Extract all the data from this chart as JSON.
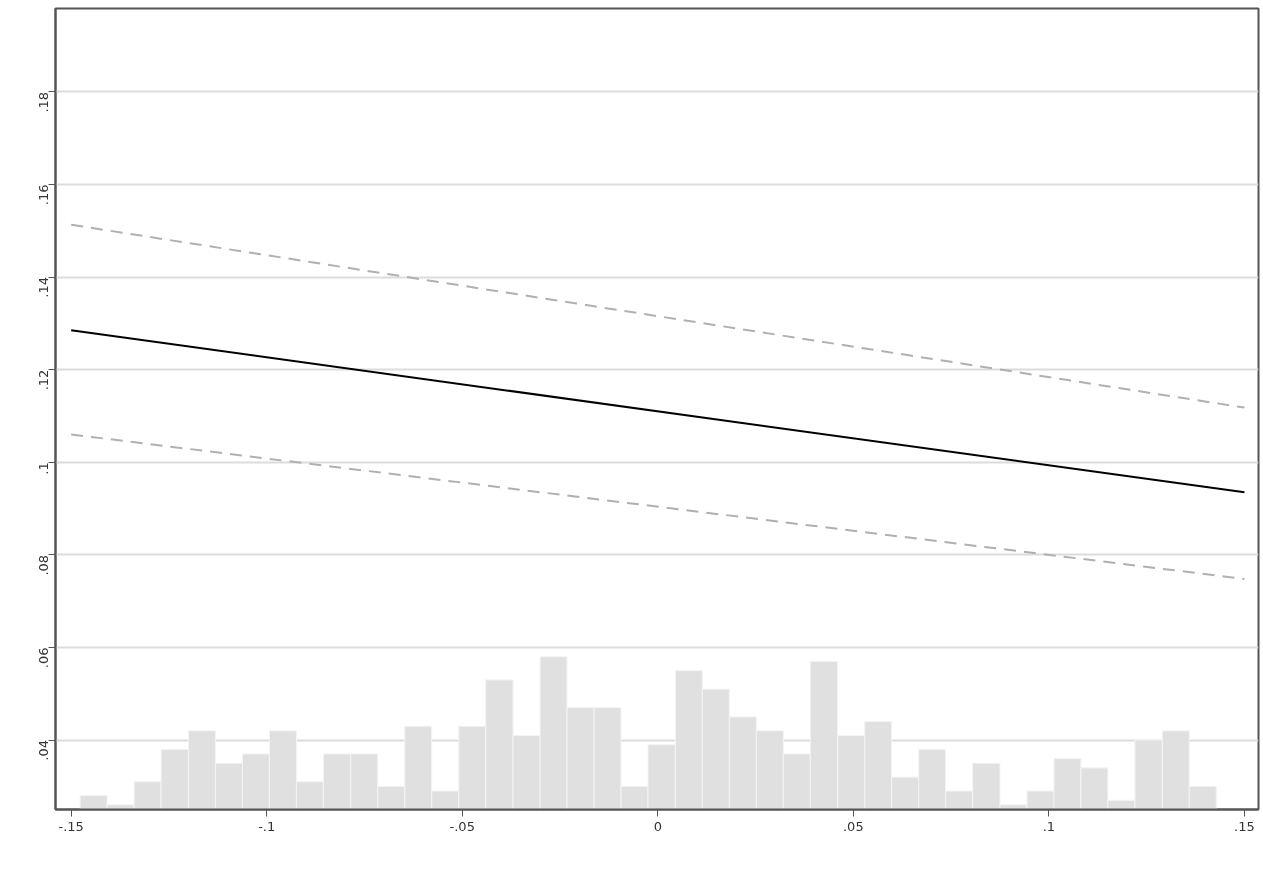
{
  "chart_data": {
    "type": "line",
    "xlim": [
      -0.154,
      0.1536
    ],
    "ylim": [
      0.025,
      0.198
    ],
    "xticks": [
      {
        "value": -0.15,
        "label": "-.15"
      },
      {
        "value": -0.1,
        "label": "-.1"
      },
      {
        "value": -0.05,
        "label": "-.05"
      },
      0,
      {
        "value": 0.05,
        "label": ".05"
      },
      {
        "value": 0.1,
        "label": ".1"
      },
      {
        "value": 0.15,
        "label": ".15"
      }
    ],
    "yticks": [
      {
        "value": 0.04,
        "label": ".04"
      },
      {
        "value": 0.06,
        "label": ".06"
      },
      {
        "value": 0.08,
        "label": ".08"
      },
      {
        "value": 0.1,
        "label": ".1"
      },
      {
        "value": 0.12,
        "label": ".12"
      },
      {
        "value": 0.14,
        "label": ".14"
      },
      {
        "value": 0.16,
        "label": ".16"
      },
      {
        "value": 0.18,
        "label": ".18"
      }
    ],
    "grid": "y",
    "x": [
      -0.15,
      0.15
    ],
    "series": [
      {
        "type": "histogram",
        "color": "#e0e0e0",
        "bins": [
          -0.1477,
          -0.1408,
          -0.1339,
          -0.127,
          -0.12,
          -0.1131,
          -0.1062,
          -0.0993,
          -0.0924,
          -0.0855,
          -0.0785,
          -0.0716,
          -0.0647,
          -0.0578,
          -0.0509,
          -0.044,
          -0.037,
          -0.0301,
          -0.0232,
          -0.0163,
          -0.0094,
          -0.0025,
          0.0045,
          0.0114,
          0.0183,
          0.0252,
          0.0321,
          0.039,
          0.046,
          0.0529,
          0.0598,
          0.0667,
          0.0736,
          0.0805,
          0.0875,
          0.0944,
          0.1013,
          0.1082,
          0.1151,
          0.122,
          0.129,
          0.1359,
          0.1428
        ],
        "values": [
          0.028,
          0.026,
          0.031,
          0.038,
          0.042,
          0.035,
          0.037,
          0.042,
          0.031,
          0.037,
          0.037,
          0.03,
          0.043,
          0.029,
          0.043,
          0.053,
          0.041,
          0.058,
          0.047,
          0.047,
          0.03,
          0.039,
          0.055,
          0.051,
          0.045,
          0.042,
          0.037,
          0.057,
          0.041,
          0.044,
          0.032,
          0.038,
          0.029,
          0.035,
          0.026,
          0.029,
          0.036,
          0.034,
          0.027,
          0.04,
          0.042,
          0.03
        ]
      },
      {
        "color": "#b0b0b0",
        "line_style": "dashed",
        "values": [
          0.1513,
          0.1118
        ]
      },
      {
        "color": "#000000",
        "line_style": "solid",
        "values": [
          0.1285,
          0.0935
        ]
      },
      {
        "color": "#b0b0b0",
        "line_style": "dashed",
        "values": [
          0.106,
          0.0748
        ]
      }
    ]
  }
}
